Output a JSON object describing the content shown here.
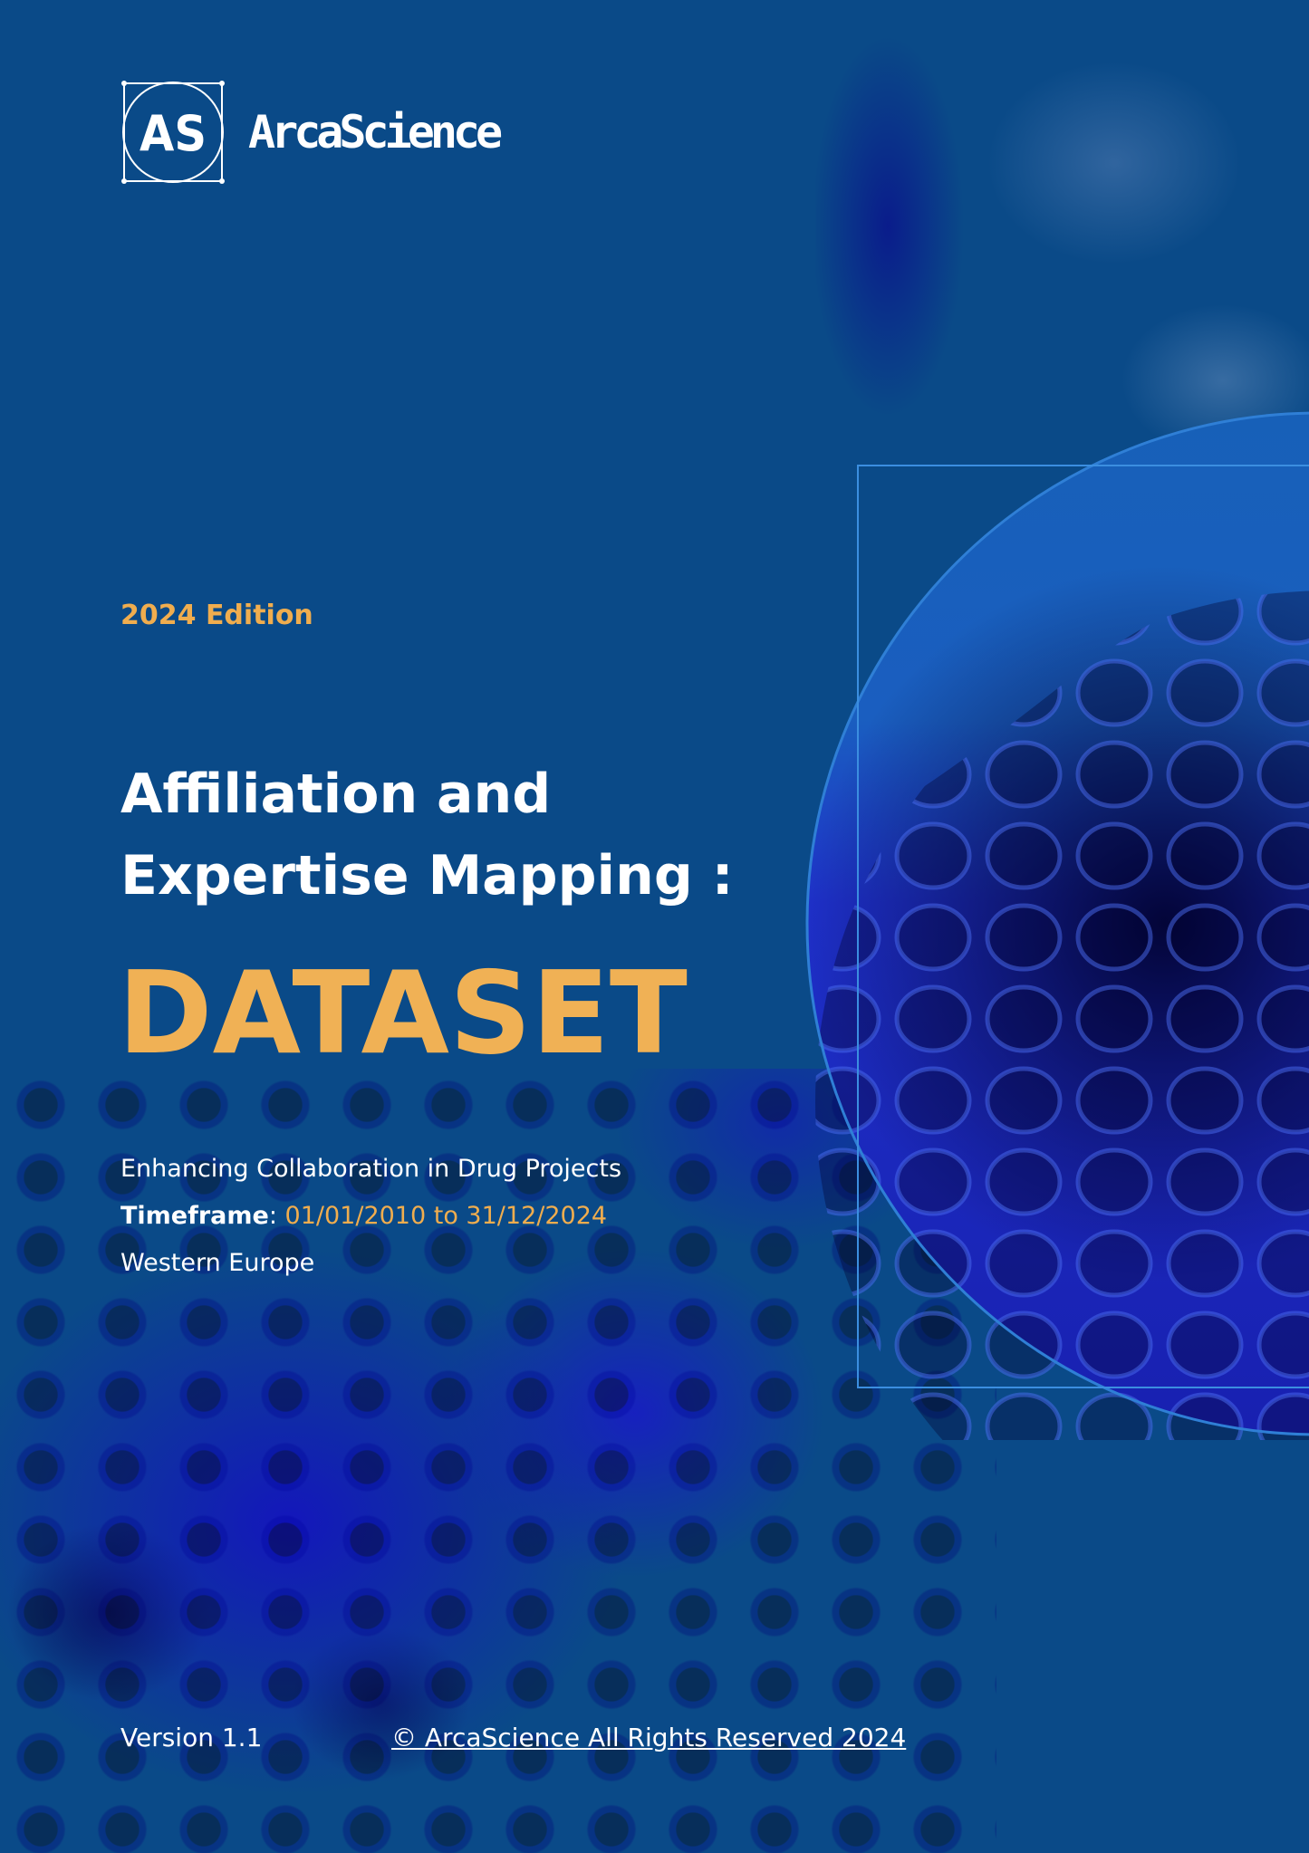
{
  "brand": {
    "logo_monogram": "AS",
    "name": "ArcaScience"
  },
  "edition": "2024 Edition",
  "title": {
    "line1": "Affiliation and",
    "line2": "Expertise Mapping :",
    "highlight": "DATASET"
  },
  "details": {
    "subtitle": "Enhancing Collaboration in Drug Projects",
    "timeframe_label": "Timeframe",
    "timeframe_sep": ": ",
    "timeframe_value": "01/01/2010 to 31/12/2024",
    "region": "Western Europe"
  },
  "footer": {
    "version": "Version 1.1",
    "copyright": "© ArcaScience All Rights Reserved 2024"
  },
  "colors": {
    "background": "#0a4a88",
    "accent": "#f0ad4e"
  }
}
